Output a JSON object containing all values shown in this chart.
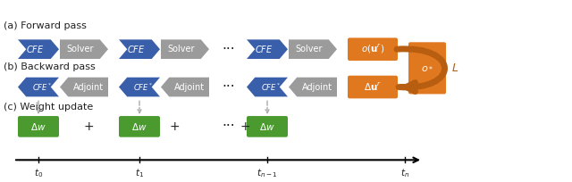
{
  "bg_color": "#ffffff",
  "blue_color": "#3a5faa",
  "gray_color": "#9b9b9b",
  "orange_box_color": "#e07820",
  "orange_arrow_color": "#c06010",
  "green_color": "#4a9a30",
  "white": "#ffffff",
  "dark": "#222222",
  "label_a": "(a) Forward pass",
  "label_b": "(b) Backward pass",
  "label_c": "(c) Weight update",
  "time_labels": [
    "$t_0$",
    "$t_1$",
    "$t_{n-1}$",
    "$t_n$"
  ]
}
